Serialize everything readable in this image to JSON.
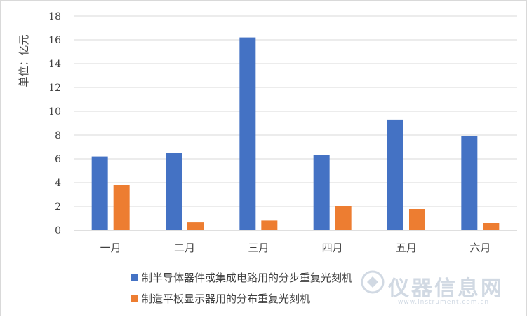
{
  "chart_data": {
    "type": "bar",
    "categories": [
      "一月",
      "二月",
      "三月",
      "四月",
      "五月",
      "六月"
    ],
    "series": [
      {
        "name": "制半导体器件或集成电路用的分步重复光刻机",
        "color": "#4472c4",
        "values": [
          6.2,
          6.5,
          16.2,
          6.3,
          9.3,
          7.9
        ]
      },
      {
        "name": "制造平板显示器用的分布重复光刻机",
        "color": "#ed7d31",
        "values": [
          3.8,
          0.7,
          0.8,
          2.0,
          1.8,
          0.6
        ]
      }
    ],
    "ylabel": "单位：亿元",
    "ylim": [
      0,
      18
    ],
    "yticks": [
      0,
      2,
      4,
      6,
      8,
      10,
      12,
      14,
      16,
      18
    ],
    "grid": true,
    "legend_position": "bottom-left"
  },
  "watermark": {
    "main_text": "仪器信息网",
    "sub_text": "www.instrument.com.cn"
  }
}
